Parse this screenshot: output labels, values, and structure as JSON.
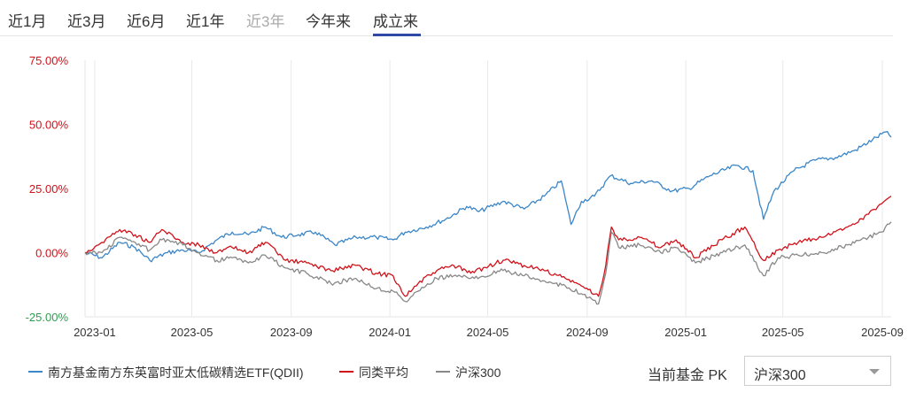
{
  "tabs": {
    "items": [
      {
        "label": "近1月",
        "state": "normal"
      },
      {
        "label": "近3月",
        "state": "normal"
      },
      {
        "label": "近6月",
        "state": "normal"
      },
      {
        "label": "近1年",
        "state": "normal"
      },
      {
        "label": "近3年",
        "state": "disabled"
      },
      {
        "label": "今年来",
        "state": "normal"
      },
      {
        "label": "成立来",
        "state": "active"
      }
    ]
  },
  "colors": {
    "fund": "#3a86c8",
    "category_avg": "#d0121a",
    "index": "#888888",
    "positive_tick": "#d0121a",
    "zero_tick": "#d0121a",
    "negative_tick": "#2e9e4f",
    "accent": "#2f4aa6"
  },
  "legend": {
    "fund": "南方基金南方东英富时亚太低碳精选ETF(QDII)",
    "category_avg": "同类平均",
    "index": "沪深300"
  },
  "pk": {
    "label": "当前基金 PK",
    "selected": "沪深300",
    "caret_icon": "chevron-down-icon"
  },
  "chart_data": {
    "type": "line",
    "x_range": [
      "2022-12-20",
      "2025-09-12"
    ],
    "x_ticks": [
      "2023-01",
      "2023-05",
      "2023-09",
      "2024-01",
      "2024-05",
      "2024-09",
      "2025-01",
      "2025-05",
      "2025-09"
    ],
    "y_ticks": [
      "75.00%",
      "50.00%",
      "25.00%",
      "0.00%",
      "-25.00%"
    ],
    "ylim": [
      -25,
      75
    ],
    "grid": "vertical",
    "series": [
      {
        "name": "南方基金南方东英富时亚太低碳精选ETF(QDII)",
        "points": [
          [
            "2022-12-20",
            0
          ],
          [
            "2023-01-10",
            -2
          ],
          [
            "2023-02-01",
            4
          ],
          [
            "2023-02-20",
            2
          ],
          [
            "2023-03-10",
            -3
          ],
          [
            "2023-04-01",
            0
          ],
          [
            "2023-04-20",
            1
          ],
          [
            "2023-05-10",
            0
          ],
          [
            "2023-06-01",
            5
          ],
          [
            "2023-06-20",
            8
          ],
          [
            "2023-07-10",
            7
          ],
          [
            "2023-07-31",
            10
          ],
          [
            "2023-08-20",
            6
          ],
          [
            "2023-09-10",
            7
          ],
          [
            "2023-10-01",
            8
          ],
          [
            "2023-10-25",
            3
          ],
          [
            "2023-11-20",
            6
          ],
          [
            "2023-12-15",
            6
          ],
          [
            "2024-01-05",
            5
          ],
          [
            "2024-01-20",
            8
          ],
          [
            "2024-02-15",
            10
          ],
          [
            "2024-03-10",
            13
          ],
          [
            "2024-04-05",
            18
          ],
          [
            "2024-04-20",
            16
          ],
          [
            "2024-05-20",
            20
          ],
          [
            "2024-06-15",
            17
          ],
          [
            "2024-07-10",
            22
          ],
          [
            "2024-07-31",
            28
          ],
          [
            "2024-08-05",
            21
          ],
          [
            "2024-08-12",
            11
          ],
          [
            "2024-08-25",
            20
          ],
          [
            "2024-09-10",
            22
          ],
          [
            "2024-09-30",
            30
          ],
          [
            "2024-10-25",
            27
          ],
          [
            "2024-11-20",
            28
          ],
          [
            "2024-12-15",
            24
          ],
          [
            "2025-01-05",
            25
          ],
          [
            "2025-01-31",
            30
          ],
          [
            "2025-03-05",
            34
          ],
          [
            "2025-03-25",
            32
          ],
          [
            "2025-04-07",
            13
          ],
          [
            "2025-04-20",
            24
          ],
          [
            "2025-05-15",
            32
          ],
          [
            "2025-06-10",
            36
          ],
          [
            "2025-07-05",
            37
          ],
          [
            "2025-07-30",
            40
          ],
          [
            "2025-08-20",
            44
          ],
          [
            "2025-09-05",
            47
          ],
          [
            "2025-09-12",
            45
          ]
        ]
      },
      {
        "name": "同类平均",
        "points": [
          [
            "2022-12-20",
            0
          ],
          [
            "2023-01-10",
            4
          ],
          [
            "2023-02-01",
            9
          ],
          [
            "2023-02-20",
            7
          ],
          [
            "2023-03-10",
            4
          ],
          [
            "2023-03-25",
            9
          ],
          [
            "2023-04-20",
            4
          ],
          [
            "2023-05-10",
            3
          ],
          [
            "2023-06-01",
            0
          ],
          [
            "2023-06-20",
            2
          ],
          [
            "2023-07-10",
            0
          ],
          [
            "2023-07-31",
            4
          ],
          [
            "2023-08-25",
            -3
          ],
          [
            "2023-09-20",
            -4
          ],
          [
            "2023-10-20",
            -7
          ],
          [
            "2023-11-20",
            -5
          ],
          [
            "2023-12-15",
            -8
          ],
          [
            "2024-01-05",
            -9
          ],
          [
            "2024-01-20",
            -17
          ],
          [
            "2024-02-05",
            -12
          ],
          [
            "2024-02-28",
            -7
          ],
          [
            "2024-03-20",
            -5
          ],
          [
            "2024-04-10",
            -8
          ],
          [
            "2024-05-20",
            -3
          ],
          [
            "2024-06-15",
            -5
          ],
          [
            "2024-07-10",
            -7
          ],
          [
            "2024-08-05",
            -10
          ],
          [
            "2024-08-25",
            -13
          ],
          [
            "2024-09-15",
            -17
          ],
          [
            "2024-09-24",
            -5
          ],
          [
            "2024-10-01",
            10
          ],
          [
            "2024-10-10",
            5
          ],
          [
            "2024-11-05",
            6
          ],
          [
            "2024-12-01",
            2
          ],
          [
            "2024-12-20",
            5
          ],
          [
            "2025-01-13",
            -2
          ],
          [
            "2025-02-15",
            5
          ],
          [
            "2025-03-15",
            10
          ],
          [
            "2025-04-07",
            -3
          ],
          [
            "2025-04-25",
            1
          ],
          [
            "2025-05-20",
            4
          ],
          [
            "2025-06-20",
            6
          ],
          [
            "2025-07-20",
            10
          ],
          [
            "2025-08-15",
            15
          ],
          [
            "2025-08-31",
            19
          ],
          [
            "2025-09-12",
            22
          ]
        ]
      },
      {
        "name": "沪深300",
        "points": [
          [
            "2022-12-20",
            0
          ],
          [
            "2023-01-10",
            0
          ],
          [
            "2023-02-01",
            6
          ],
          [
            "2023-02-20",
            4
          ],
          [
            "2023-03-10",
            1
          ],
          [
            "2023-03-25",
            5
          ],
          [
            "2023-04-20",
            3
          ],
          [
            "2023-05-10",
            0
          ],
          [
            "2023-06-01",
            -3
          ],
          [
            "2023-06-20",
            -2
          ],
          [
            "2023-07-10",
            -4
          ],
          [
            "2023-07-31",
            -1
          ],
          [
            "2023-08-25",
            -6
          ],
          [
            "2023-09-20",
            -8
          ],
          [
            "2023-10-20",
            -12
          ],
          [
            "2023-11-20",
            -10
          ],
          [
            "2023-12-15",
            -14
          ],
          [
            "2024-01-05",
            -15
          ],
          [
            "2024-01-20",
            -19
          ],
          [
            "2024-02-05",
            -15
          ],
          [
            "2024-02-28",
            -10
          ],
          [
            "2024-03-20",
            -9
          ],
          [
            "2024-04-10",
            -10
          ],
          [
            "2024-05-20",
            -7
          ],
          [
            "2024-06-15",
            -9
          ],
          [
            "2024-07-10",
            -11
          ],
          [
            "2024-08-05",
            -13
          ],
          [
            "2024-08-25",
            -16
          ],
          [
            "2024-09-15",
            -20
          ],
          [
            "2024-09-24",
            -8
          ],
          [
            "2024-10-01",
            8
          ],
          [
            "2024-10-10",
            2
          ],
          [
            "2024-11-05",
            3
          ],
          [
            "2024-12-01",
            0
          ],
          [
            "2024-12-20",
            2
          ],
          [
            "2025-01-13",
            -4
          ],
          [
            "2025-02-15",
            0
          ],
          [
            "2025-03-15",
            3
          ],
          [
            "2025-04-07",
            -9
          ],
          [
            "2025-04-25",
            -2
          ],
          [
            "2025-05-20",
            -1
          ],
          [
            "2025-06-20",
            0
          ],
          [
            "2025-07-20",
            3
          ],
          [
            "2025-08-15",
            6
          ],
          [
            "2025-08-31",
            8
          ],
          [
            "2025-09-12",
            12
          ]
        ]
      }
    ]
  }
}
